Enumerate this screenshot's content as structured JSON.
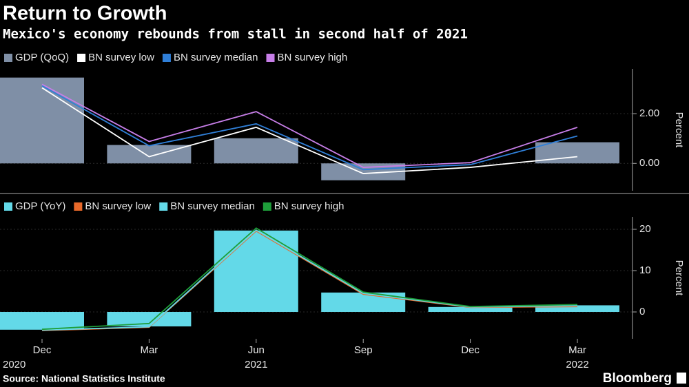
{
  "header": {
    "title": "Return to Growth",
    "subtitle": "Mexico's economy rebounds from stall in second half of 2021"
  },
  "footer": {
    "source": "Source: National Statistics Institute",
    "brand": "Bloomberg"
  },
  "chart_data": [
    {
      "type": "bar",
      "y_label": "Percent",
      "ylim": [
        -1.1,
        3.8
      ],
      "yticks": [
        {
          "value": 0,
          "label": "0.00"
        },
        {
          "value": 2,
          "label": "2.00"
        }
      ],
      "series": [
        {
          "name": "GDP (QoQ)",
          "type": "bar",
          "color": "#7f8fa6",
          "values": [
            3.45,
            0.74,
            1.01,
            -0.68,
            0,
            0.85
          ]
        },
        {
          "name": "BN survey low",
          "type": "line",
          "color": "#ffffff",
          "values": [
            3.04,
            0.27,
            1.45,
            -0.41,
            -0.16,
            0.27
          ]
        },
        {
          "name": "BN survey median",
          "type": "line",
          "color": "#2f7fd8",
          "values": [
            3.12,
            0.71,
            1.59,
            -0.25,
            -0.05,
            1.1
          ]
        },
        {
          "name": "BN survey high",
          "type": "line",
          "color": "#c77ee8",
          "values": [
            3.18,
            0.88,
            2.08,
            -0.16,
            0.03,
            1.45
          ]
        }
      ]
    },
    {
      "type": "bar",
      "y_label": "Percent",
      "categories": [
        "Dec",
        "Mar",
        "Jun",
        "Sep",
        "Dec",
        "Mar"
      ],
      "year_labels": [
        "2020",
        null,
        "2021",
        null,
        null,
        "2022"
      ],
      "ylim": [
        -6.5,
        23
      ],
      "yticks": [
        0,
        10,
        20
      ],
      "series": [
        {
          "name": "GDP (YoY)",
          "type": "bar",
          "color": "#63d9e8",
          "values": [
            -4.3,
            -3.5,
            19.7,
            4.7,
            1.2,
            1.6
          ]
        },
        {
          "name": "BN survey low",
          "type": "line",
          "color": "#e8692a",
          "values": [
            -4.5,
            -3.7,
            19.6,
            4.3,
            1.1,
            1.3
          ]
        },
        {
          "name": "BN survey median",
          "type": "line",
          "color": "#63d9e8",
          "values": [
            -4.4,
            -3.6,
            19.8,
            4.5,
            1.2,
            1.5
          ]
        },
        {
          "name": "BN survey high",
          "type": "line",
          "color": "#1e9e3a",
          "values": [
            -4.2,
            -2.8,
            20.3,
            4.8,
            1.3,
            1.8
          ]
        }
      ]
    }
  ]
}
